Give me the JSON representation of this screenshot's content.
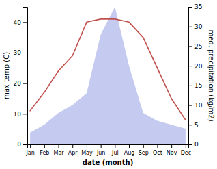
{
  "chart_data": {
    "type": "line",
    "xlabel": "date (month)",
    "ylabel": "max temp (C)",
    "y2label": "med. precipitation (kg/m2)",
    "categories": [
      "Jan",
      "Feb",
      "Mar",
      "Apr",
      "May",
      "Jun",
      "Jul",
      "Aug",
      "Sep",
      "Oct",
      "Nov",
      "Dec"
    ],
    "series": [
      {
        "type": "area",
        "axis": "y2",
        "color": "#c5caf0",
        "values": [
          3,
          5,
          8,
          10,
          13,
          28,
          35,
          20,
          8,
          6,
          5,
          4
        ]
      },
      {
        "type": "line",
        "color": "#c0504d",
        "values": [
          11,
          17,
          24,
          29,
          40,
          41,
          41,
          40,
          35,
          25,
          15,
          8
        ]
      }
    ],
    "ylim": [
      0,
      45
    ],
    "yticks": [
      0,
      10,
      20,
      30,
      40
    ],
    "y2lim": [
      0,
      35
    ],
    "y2ticks": [
      0,
      5,
      10,
      15,
      20,
      25,
      30,
      35
    ],
    "grid": false
  }
}
